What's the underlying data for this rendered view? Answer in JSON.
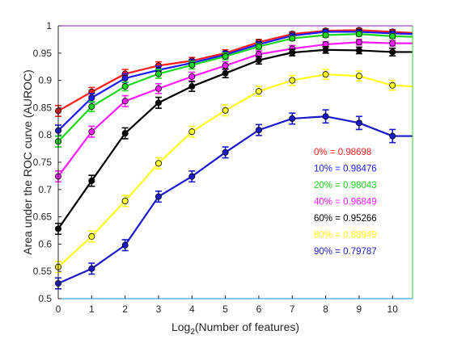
{
  "chart_data": {
    "type": "line",
    "xlabel_main": "Log",
    "xlabel_sub": "2",
    "xlabel_rest": "(Number of features)",
    "ylabel": "Area under the ROC curve (AUROC)",
    "xlim": [
      0,
      10.6
    ],
    "ylim": [
      0.5,
      1.0
    ],
    "xticks": [
      "0",
      "1",
      "2",
      "3",
      "4",
      "5",
      "6",
      "7",
      "8",
      "9",
      "10"
    ],
    "yticks": [
      "0.5",
      "0.55",
      "0.6",
      "0.65",
      "0.7",
      "0.75",
      "0.8",
      "0.85",
      "0.9",
      "0.95",
      "1"
    ],
    "x": [
      0,
      1,
      2,
      3,
      4,
      5,
      6,
      7,
      8,
      9,
      10,
      10.6
    ],
    "series": [
      {
        "name": "0% = 0.98698",
        "color": "#ff1a1a",
        "values": [
          0.844,
          0.879,
          0.912,
          0.927,
          0.936,
          0.95,
          0.97,
          0.985,
          0.991,
          0.992,
          0.989,
          0.987
        ],
        "errors": [
          0.01,
          0.008,
          0.008,
          0.007,
          0.006,
          0.006,
          0.005,
          0.004,
          0.003,
          0.003,
          0.004,
          0.004
        ]
      },
      {
        "name": "10% = 0.98476",
        "color": "#1a1aff",
        "values": [
          0.808,
          0.868,
          0.904,
          0.919,
          0.932,
          0.947,
          0.966,
          0.982,
          0.989,
          0.989,
          0.986,
          0.985
        ],
        "errors": [
          0.01,
          0.008,
          0.008,
          0.007,
          0.006,
          0.006,
          0.005,
          0.004,
          0.003,
          0.003,
          0.004,
          0.004
        ]
      },
      {
        "name": "20% = 0.98043",
        "color": "#1ad91a",
        "values": [
          0.788,
          0.852,
          0.889,
          0.912,
          0.928,
          0.944,
          0.962,
          0.977,
          0.983,
          0.985,
          0.981,
          0.98
        ],
        "errors": [
          0.01,
          0.009,
          0.008,
          0.008,
          0.007,
          0.006,
          0.005,
          0.004,
          0.004,
          0.004,
          0.004,
          0.004
        ]
      },
      {
        "name": "40% = 0.96849",
        "color": "#ff1aff",
        "values": [
          0.724,
          0.806,
          0.862,
          0.885,
          0.907,
          0.927,
          0.948,
          0.958,
          0.966,
          0.97,
          0.968,
          0.968
        ],
        "errors": [
          0.01,
          0.01,
          0.01,
          0.009,
          0.008,
          0.007,
          0.006,
          0.006,
          0.005,
          0.005,
          0.005,
          0.005
        ]
      },
      {
        "name": "60% = 0.95266",
        "color": "#000000",
        "values": [
          0.628,
          0.716,
          0.803,
          0.859,
          0.889,
          0.913,
          0.937,
          0.951,
          0.956,
          0.955,
          0.952,
          0.952
        ],
        "errors": [
          0.01,
          0.01,
          0.01,
          0.01,
          0.009,
          0.008,
          0.007,
          0.006,
          0.006,
          0.006,
          0.007,
          0.007
        ]
      },
      {
        "name": "80% = 0.88949",
        "color": "#ffff1a",
        "values": [
          0.558,
          0.614,
          0.679,
          0.748,
          0.806,
          0.845,
          0.88,
          0.9,
          0.911,
          0.908,
          0.891,
          0.889
        ],
        "errors": [
          0.01,
          0.01,
          0.01,
          0.01,
          0.01,
          0.01,
          0.009,
          0.009,
          0.009,
          0.009,
          0.009,
          0.009
        ]
      },
      {
        "name": "90% = 0.79787",
        "color": "#1a1acc",
        "values": [
          0.528,
          0.555,
          0.598,
          0.687,
          0.724,
          0.768,
          0.809,
          0.83,
          0.834,
          0.822,
          0.798,
          0.798
        ],
        "errors": [
          0.01,
          0.01,
          0.01,
          0.01,
          0.01,
          0.01,
          0.01,
          0.01,
          0.012,
          0.012,
          0.012,
          0.012
        ]
      }
    ],
    "legend_position": "right",
    "grid": false
  }
}
